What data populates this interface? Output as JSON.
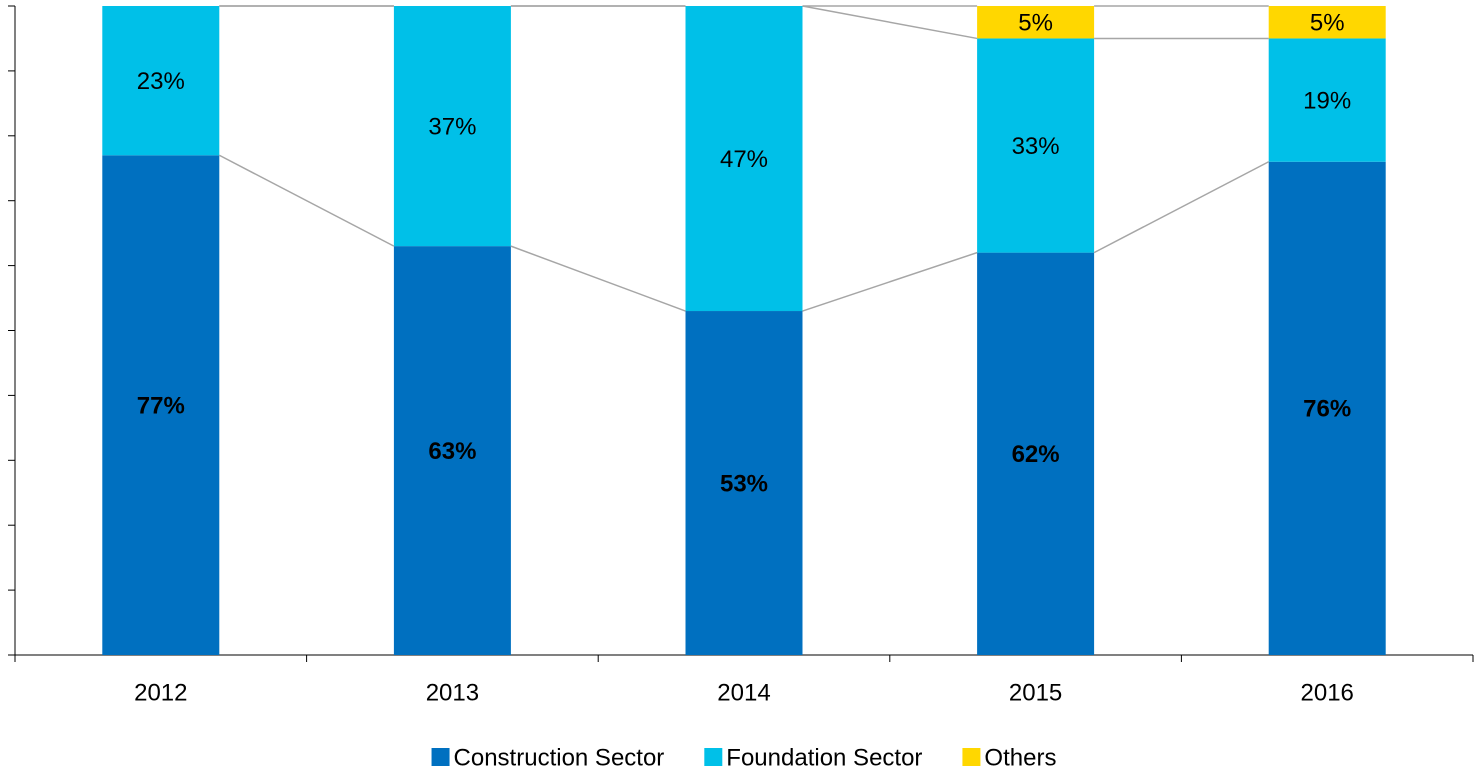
{
  "chart_data": {
    "type": "stacked_bar",
    "categories": [
      "2012",
      "2013",
      "2014",
      "2015",
      "2016"
    ],
    "series": [
      {
        "name": "Construction Sector",
        "color": "#0070c0",
        "values": [
          77,
          63,
          53,
          62,
          76
        ],
        "value_labels": [
          "77%",
          "63%",
          "53%",
          "62%",
          "76%"
        ]
      },
      {
        "name": "Foundation Sector",
        "color": "#00c0e8",
        "values": [
          23,
          37,
          47,
          33,
          19
        ],
        "value_labels": [
          "23%",
          "37%",
          "47%",
          "33%",
          "19%"
        ]
      },
      {
        "name": "Others",
        "color": "#ffd700",
        "values": [
          null,
          null,
          null,
          5,
          5
        ],
        "value_labels": [
          null,
          null,
          null,
          "5%",
          "5%"
        ]
      }
    ],
    "ylim": [
      0,
      100
    ],
    "yticks": [
      0,
      10,
      20,
      30,
      40,
      50,
      60,
      70,
      80,
      90,
      100
    ],
    "legend": "bottom"
  }
}
